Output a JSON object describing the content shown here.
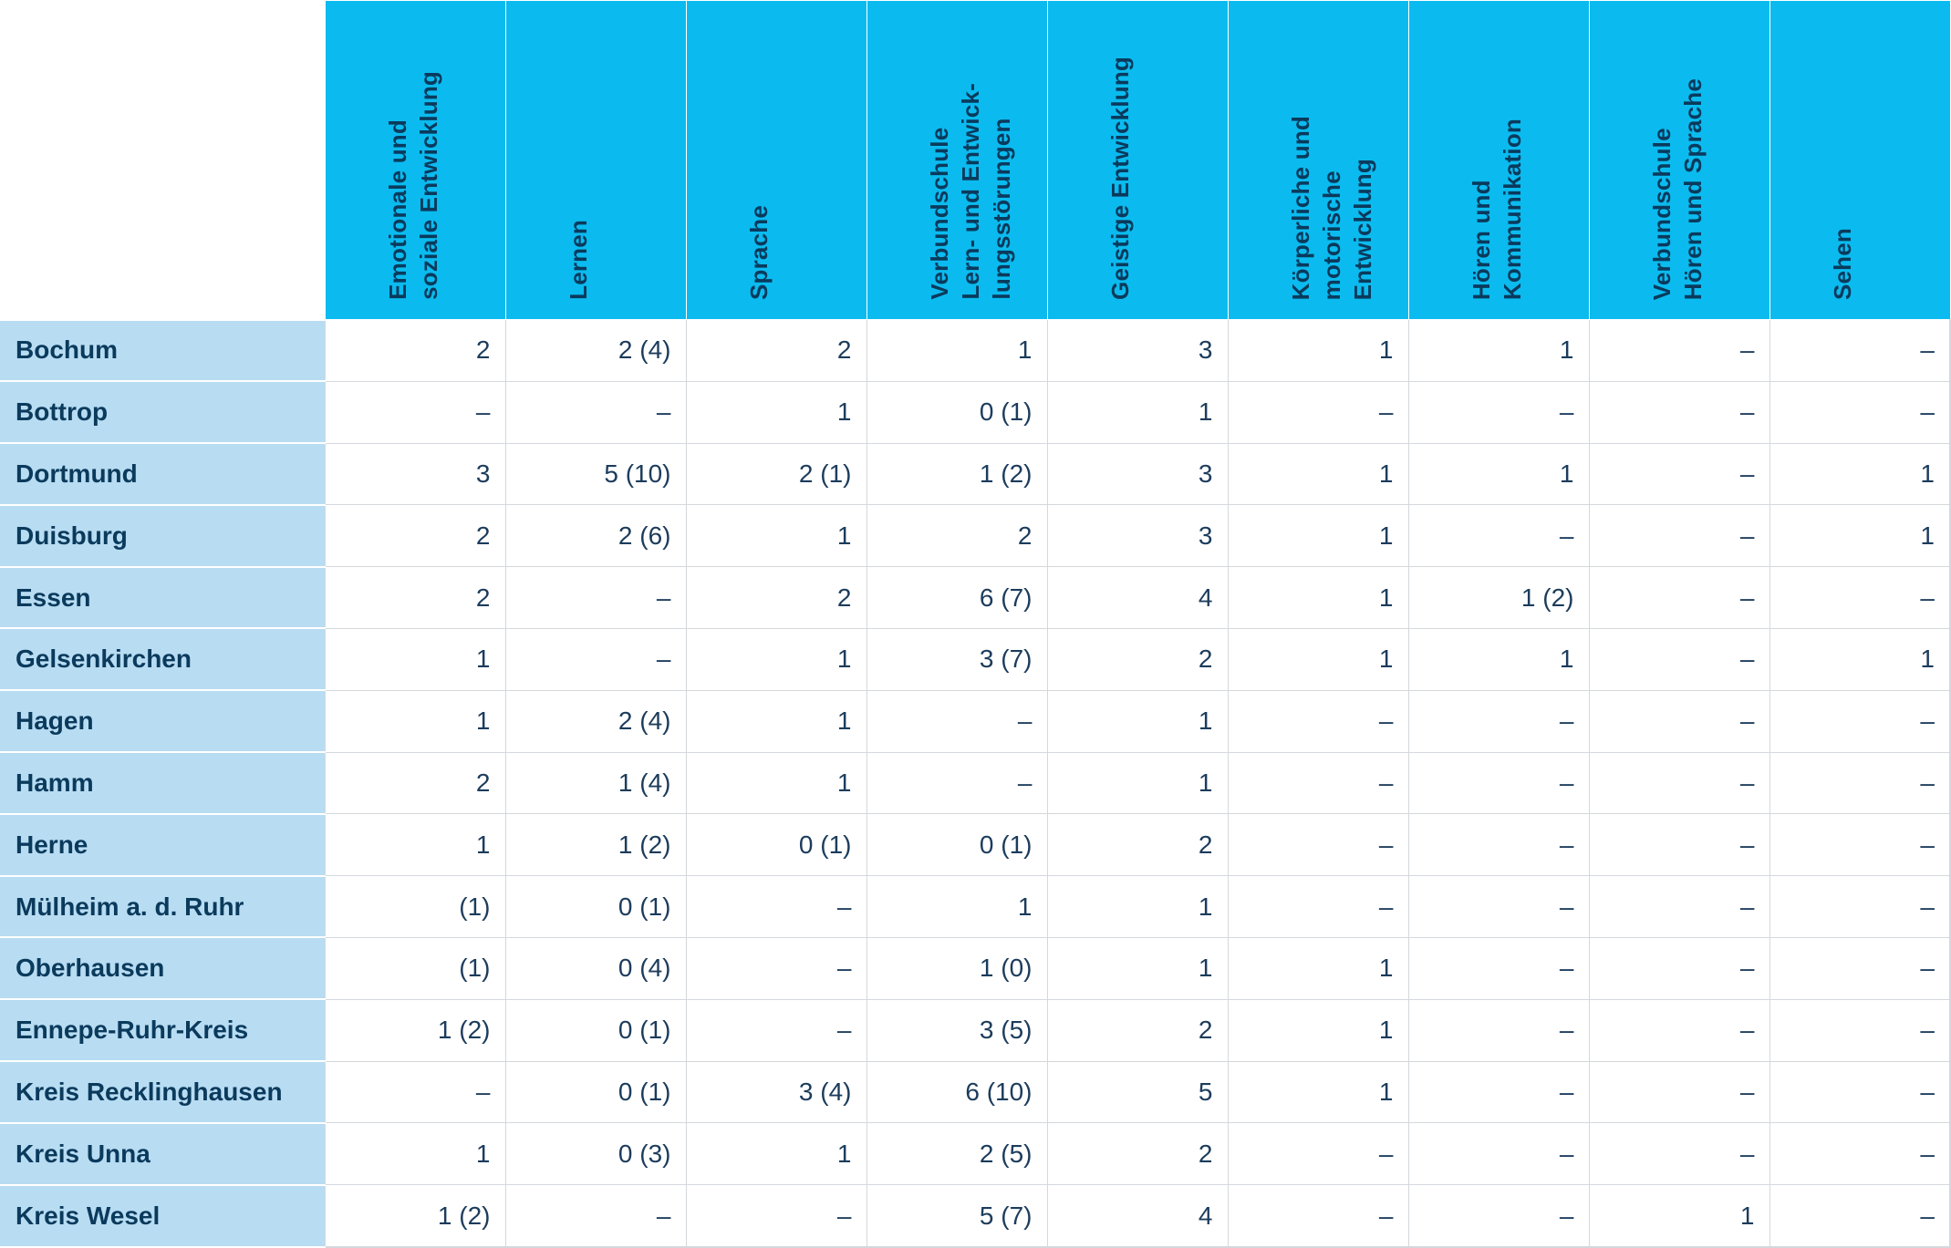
{
  "table": {
    "columns": [
      "Emotionale und\nsoziale Entwicklung",
      "Lernen",
      "Sprache",
      "Verbundschule\nLern- und Entwick-\nlungsstörungen",
      "Geistige Entwicklung",
      "Körperliche und\nmotorische\nEntwicklung",
      "Hören und\nKommunikation",
      "Verbundschule\nHören und Sprache",
      "Sehen"
    ],
    "rows": [
      {
        "label": "Bochum",
        "values": [
          "2",
          "2 (4)",
          "2",
          "1",
          "3",
          "1",
          "1",
          "–",
          "–"
        ]
      },
      {
        "label": "Bottrop",
        "values": [
          "–",
          "–",
          "1",
          "0 (1)",
          "1",
          "–",
          "–",
          "–",
          "–"
        ]
      },
      {
        "label": "Dortmund",
        "values": [
          "3",
          "5 (10)",
          "2 (1)",
          "1 (2)",
          "3",
          "1",
          "1",
          "–",
          "1"
        ]
      },
      {
        "label": "Duisburg",
        "values": [
          "2",
          "2 (6)",
          "1",
          "2",
          "3",
          "1",
          "–",
          "–",
          "1"
        ]
      },
      {
        "label": "Essen",
        "values": [
          "2",
          "–",
          "2",
          "6 (7)",
          "4",
          "1",
          "1 (2)",
          "–",
          "–"
        ]
      },
      {
        "label": "Gelsenkirchen",
        "values": [
          "1",
          "–",
          "1",
          "3 (7)",
          "2",
          "1",
          "1",
          "–",
          "1"
        ]
      },
      {
        "label": "Hagen",
        "values": [
          "1",
          "2 (4)",
          "1",
          "–",
          "1",
          "–",
          "–",
          "–",
          "–"
        ]
      },
      {
        "label": "Hamm",
        "values": [
          "2",
          "1 (4)",
          "1",
          "–",
          "1",
          "–",
          "–",
          "–",
          "–"
        ]
      },
      {
        "label": "Herne",
        "values": [
          "1",
          "1 (2)",
          "0 (1)",
          "0 (1)",
          "2",
          "–",
          "–",
          "–",
          "–"
        ]
      },
      {
        "label": "Mülheim a. d. Ruhr",
        "values": [
          "(1)",
          "0 (1)",
          "–",
          "1",
          "1",
          "–",
          "–",
          "–",
          "–"
        ]
      },
      {
        "label": "Oberhausen",
        "values": [
          "(1)",
          "0 (4)",
          "–",
          "1 (0)",
          "1",
          "1",
          "–",
          "–",
          "–"
        ]
      },
      {
        "label": "Ennepe-Ruhr-Kreis",
        "values": [
          "1 (2)",
          "0 (1)",
          "–",
          "3 (5)",
          "2",
          "1",
          "–",
          "–",
          "–"
        ]
      },
      {
        "label": "Kreis Recklinghausen",
        "values": [
          "–",
          "0 (1)",
          "3 (4)",
          "6 (10)",
          "5",
          "1",
          "–",
          "–",
          "–"
        ]
      },
      {
        "label": "Kreis Unna",
        "values": [
          "1",
          "0 (3)",
          "1",
          "2 (5)",
          "2",
          "–",
          "–",
          "–",
          "–"
        ]
      },
      {
        "label": "Kreis Wesel",
        "values": [
          "1 (2)",
          "–",
          "–",
          "5 (7)",
          "4",
          "–",
          "–",
          "1",
          "–"
        ]
      }
    ]
  },
  "colors": {
    "header_background": "#0bbbef",
    "row_header_background": "#b8dcf2",
    "text": "#0a3a5c"
  }
}
